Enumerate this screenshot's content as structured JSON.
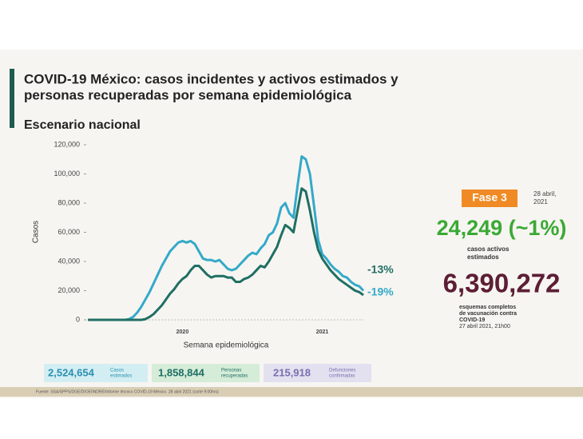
{
  "chart_data": {
    "type": "line",
    "title": [
      "COVID-19 México: casos incidentes y activos estimados y",
      "personas recuperadas por semana epidemiológica"
    ],
    "subtitle": "Escenario nacional",
    "x_label": "Semana epidemiológica",
    "y_label": "Casos",
    "categories": [
      null,
      null,
      null,
      null,
      null,
      null,
      null,
      null,
      null,
      null,
      null,
      null,
      null,
      null,
      null,
      null,
      null,
      null,
      null,
      null,
      null,
      null,
      null,
      "2020",
      null,
      null,
      null,
      null,
      null,
      null,
      null,
      null,
      null,
      null,
      null,
      null,
      null,
      null,
      null,
      null,
      null,
      null,
      null,
      null,
      null,
      null,
      null,
      null,
      null,
      null,
      null,
      null,
      null,
      null,
      null,
      null,
      null,
      "2021",
      null,
      null,
      null,
      null,
      null,
      null,
      null,
      null,
      null,
      null
    ],
    "ylim": [
      0,
      120000
    ],
    "yticks": [
      0,
      {
        "value": 20000,
        "label": "20,000"
      },
      {
        "value": 40000,
        "label": "40,000"
      },
      {
        "value": 60000,
        "label": "60,000"
      },
      {
        "value": 80000,
        "label": "80,000"
      },
      {
        "value": 100000,
        "label": "100,000"
      },
      {
        "value": 120000,
        "label": "120,000"
      }
    ],
    "series": [
      {
        "color": "#33a9c9",
        "end_label": "-13%",
        "end_label_color": "#1f6f63",
        "values": [
          0,
          0,
          0,
          0,
          0,
          0,
          0,
          0,
          0,
          0,
          500,
          2000,
          5000,
          9000,
          14000,
          19000,
          25000,
          31000,
          37000,
          42000,
          47000,
          50000,
          53000,
          54000,
          53000,
          54000,
          52000,
          47000,
          42000,
          41000,
          41000,
          40000,
          41000,
          38000,
          35000,
          34000,
          35000,
          38000,
          41000,
          44000,
          46000,
          45000,
          49000,
          52000,
          58000,
          60000,
          66000,
          77000,
          80000,
          73000,
          70000,
          92000,
          112000,
          110000,
          100000,
          78000,
          55000,
          45000,
          42000,
          38000,
          35000,
          33000,
          30000,
          29000,
          26000,
          24000,
          23000,
          20000
        ]
      },
      {
        "color": "#1f6f63",
        "end_label": "-19%",
        "end_label_color": "#33a9c9",
        "values": [
          0,
          0,
          0,
          0,
          0,
          0,
          0,
          0,
          0,
          0,
          0,
          0,
          0,
          0,
          500,
          2000,
          4000,
          7000,
          10000,
          14000,
          18000,
          21000,
          25000,
          28000,
          30000,
          34000,
          37000,
          37000,
          34000,
          31000,
          29000,
          30000,
          30000,
          30000,
          29000,
          29000,
          26000,
          26000,
          28000,
          29000,
          31000,
          34000,
          37000,
          36000,
          40000,
          45000,
          50000,
          58000,
          65000,
          63000,
          60000,
          75000,
          90000,
          88000,
          75000,
          60000,
          48000,
          42000,
          38000,
          34000,
          31000,
          28000,
          26000,
          24000,
          22000,
          20000,
          19000,
          17000
        ]
      }
    ]
  },
  "panel": {
    "phase": "Fase 3",
    "date": [
      "28 abril,",
      "2021"
    ],
    "active": "24,249 (~1%)",
    "active_label": [
      "casos activos",
      "estimados"
    ],
    "vaccines": "6,390,272",
    "vaccines_label": [
      "esquemas completos",
      "de vacunación contra",
      "COVID-19",
      "27 abril 2021, 21h00"
    ]
  },
  "boxes": [
    {
      "value": "2,524,654",
      "label": [
        "Casos",
        "estimados"
      ]
    },
    {
      "value": "1,858,844",
      "label": [
        "Personas",
        "recuperadas"
      ]
    },
    {
      "value": "215,918",
      "label": [
        "Defunciones",
        "confirmadas"
      ]
    }
  ],
  "source": "Fuente: SSA/SPPS/DGE/DIOE/INDRE/Informe técnico COVID-19 México. 28 abril 2021 (corte 9:00hrs)"
}
